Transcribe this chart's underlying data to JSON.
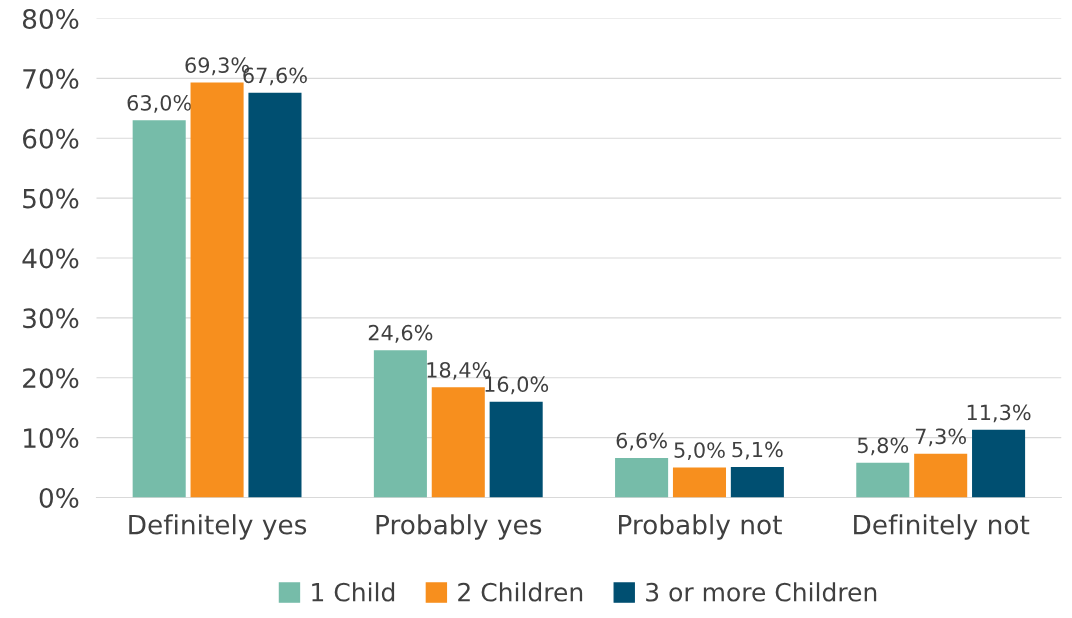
{
  "chart_data": {
    "type": "bar",
    "categories": [
      "Definitely yes",
      "Probably yes",
      "Probably not",
      "Definitely not"
    ],
    "series": [
      {
        "name": "1 Child",
        "color": "#76bca9",
        "values": [
          63.0,
          24.6,
          6.6,
          5.8
        ],
        "value_labels": [
          "63,0%",
          "24,6%",
          "6,6%",
          "5,8%"
        ]
      },
      {
        "name": "2 Children",
        "color": "#f78f1e",
        "values": [
          69.3,
          18.4,
          5.0,
          7.3
        ],
        "value_labels": [
          "69,3%",
          "18,4%",
          "5,0%",
          "7,3%"
        ]
      },
      {
        "name": "3 or more Children",
        "color": "#004f71",
        "values": [
          67.6,
          16.0,
          5.1,
          11.3
        ],
        "value_labels": [
          "67,6%",
          "16,0%",
          "5,1%",
          "11,3%"
        ]
      }
    ],
    "ylim": [
      0,
      80
    ],
    "yticks": [
      {
        "value": 0,
        "label": "0%"
      },
      {
        "value": 10,
        "label": "10%"
      },
      {
        "value": 20,
        "label": "20%"
      },
      {
        "value": 30,
        "label": "30%"
      },
      {
        "value": 40,
        "label": "40%"
      },
      {
        "value": 50,
        "label": "50%"
      },
      {
        "value": 60,
        "label": "60%"
      },
      {
        "value": 70,
        "label": "70%"
      },
      {
        "value": 80,
        "label": "80%"
      }
    ],
    "grid": "y",
    "legend": "bottom"
  }
}
